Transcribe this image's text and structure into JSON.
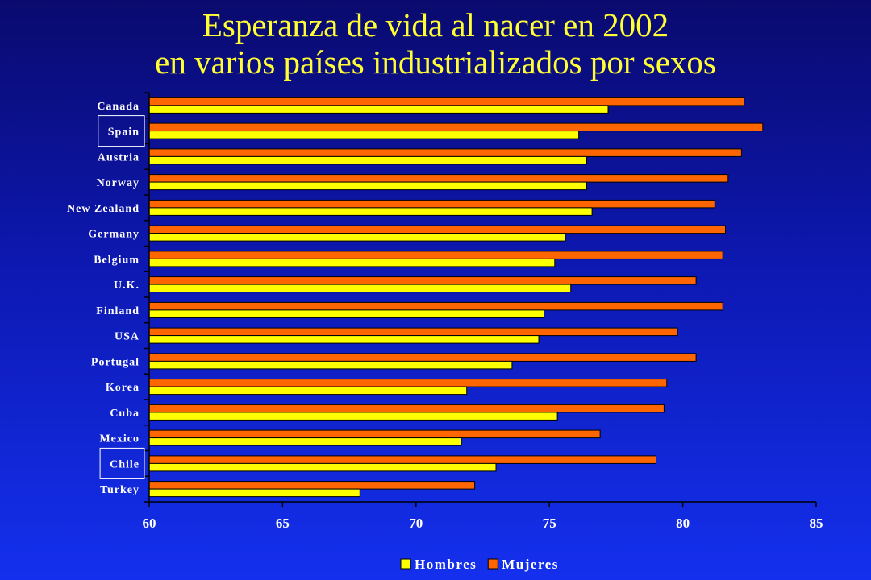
{
  "header": {
    "title_line1": "Esperanza de vida al nacer en 2002",
    "title_line2": "en varios países industrializados por sexos"
  },
  "colors": {
    "hombres": "#ffff00",
    "mujeres": "#ff6600",
    "background_top": "#0a0a6e",
    "background_bottom": "#1430ee",
    "title": "#ffff33",
    "text": "#ffffff"
  },
  "chart_data": {
    "type": "bar",
    "orientation": "horizontal",
    "title": "Esperanza de vida al nacer en 2002 en varios países industrializados por sexos",
    "categories": [
      "Canada",
      "Spain",
      "Austria",
      "Norway",
      "New Zealand",
      "Germany",
      "Belgium",
      "U.K.",
      "Finland",
      "USA",
      "Portugal",
      "Korea",
      "Cuba",
      "Mexico",
      "Chile",
      "Turkey"
    ],
    "highlighted_categories": [
      "Spain",
      "Chile"
    ],
    "series": [
      {
        "name": "Hombres",
        "values": [
          77.2,
          76.1,
          76.4,
          76.4,
          76.6,
          75.6,
          75.2,
          75.8,
          74.8,
          74.6,
          73.6,
          71.9,
          75.3,
          71.7,
          73.0,
          67.9
        ]
      },
      {
        "name": "Mujeres",
        "values": [
          82.3,
          83.0,
          82.2,
          81.7,
          81.2,
          81.6,
          81.5,
          80.5,
          81.5,
          79.8,
          80.5,
          79.4,
          79.3,
          76.9,
          79.0,
          72.2
        ]
      }
    ],
    "xlim": [
      60,
      85
    ],
    "x_ticks": [
      "60",
      "65",
      "70",
      "75",
      "80",
      "85"
    ],
    "xlabel": "",
    "ylabel": "",
    "grid": false,
    "legend": {
      "position": "bottom-center",
      "entries": [
        "Hombres",
        "Mujeres"
      ]
    }
  }
}
